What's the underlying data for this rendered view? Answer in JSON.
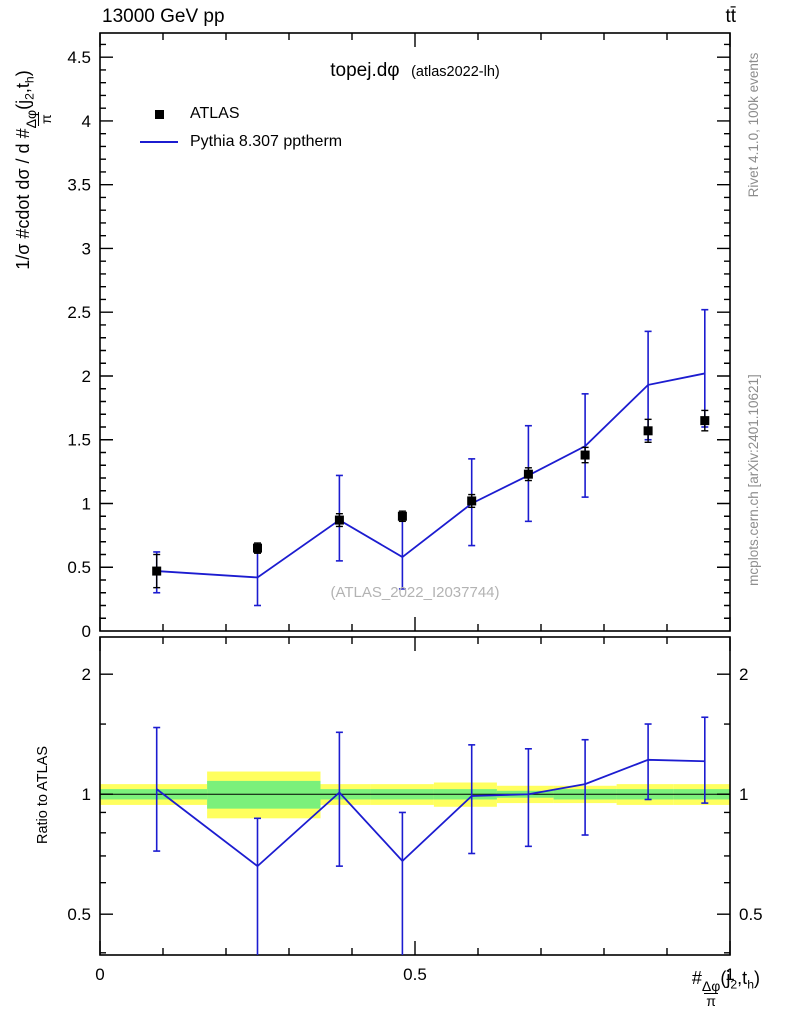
{
  "header": {
    "left_label": "13000 GeV pp",
    "right_label": "tt̄"
  },
  "plot": {
    "title": "topej.dφ",
    "subtitle": "(atlas2022-lh)",
    "watermark": "(ATLAS_2022_I2037744)"
  },
  "axis_labels": {
    "ylabel_pre": "1/σ #cdot dσ / d #",
    "frac_num": "Δφ",
    "frac_den": "π",
    "args_pre": "(j",
    "arg_sub1": "2",
    "args_mid": ",t",
    "arg_sub2": "h",
    "args_post": ")",
    "xlabel_pre": "#",
    "ratio_ylabel": "Ratio to ATLAS"
  },
  "sidebar": {
    "top": "Rivet 4.1.0,  100k events",
    "bottom": "mcplots.cern.ch [arXiv:2401.10621]"
  },
  "legend": {
    "items": [
      {
        "label": "ATLAS",
        "marker": "square",
        "color": "#000000"
      },
      {
        "label": "Pythia 8.307 pptherm",
        "marker": "line",
        "color": "#1c1cd0"
      }
    ]
  },
  "colors": {
    "curve": "#1c1cd0",
    "data": "#000000",
    "band_outer": "#ffff5e",
    "band_inner": "#7bf07b",
    "gray_text": "#8d8d8d"
  },
  "chart_data": {
    "type": "line",
    "title": "topej.dφ (atlas2022-lh)",
    "xlabel": "#Δφ/π(j2,th)",
    "ylabel": "1/σ #cdot dσ / d #Δφ/π(j2,th)",
    "legend_position": "top-left",
    "grid": false,
    "xlim": [
      0,
      1
    ],
    "main_ylim": [
      0,
      4.69
    ],
    "main_yticks": [
      0,
      0.5,
      1,
      1.5,
      2,
      2.5,
      3,
      3.5,
      4,
      4.5
    ],
    "xticks": [
      0,
      0.5,
      1
    ],
    "xtick_labels": [
      "0",
      "0.5",
      "1"
    ],
    "ratio_ylim": [
      0.395,
      2.48
    ],
    "ratio_yticks": [
      0.5,
      1,
      2
    ],
    "ratio_minor_yticks": [
      0.4,
      0.6,
      0.7,
      0.8,
      0.9,
      1.5
    ],
    "x": [
      0.09,
      0.25,
      0.38,
      0.48,
      0.59,
      0.68,
      0.77,
      0.87,
      0.96
    ],
    "series": [
      {
        "name": "ATLAS",
        "type": "points",
        "values": [
          0.47,
          0.65,
          0.87,
          0.9,
          1.02,
          1.23,
          1.38,
          1.57,
          1.65
        ],
        "err": [
          0.13,
          0.04,
          0.05,
          0.04,
          0.05,
          0.05,
          0.06,
          0.09,
          0.08
        ]
      },
      {
        "name": "Pythia 8.307 pptherm",
        "type": "line",
        "values": [
          0.47,
          0.42,
          0.87,
          0.58,
          1.0,
          1.22,
          1.45,
          1.93,
          2.02
        ],
        "err_lo": [
          0.17,
          0.22,
          0.32,
          0.25,
          0.33,
          0.36,
          0.4,
          0.43,
          0.42
        ],
        "err_hi": [
          0.15,
          0.2,
          0.35,
          0.34,
          0.35,
          0.39,
          0.41,
          0.42,
          0.5
        ]
      }
    ],
    "ratio": {
      "name": "Pythia / ATLAS",
      "values": [
        1.03,
        0.66,
        1.01,
        0.68,
        0.99,
        1.0,
        1.06,
        1.22,
        1.21
      ],
      "err_lo": [
        0.31,
        0.33,
        0.35,
        0.33,
        0.28,
        0.26,
        0.27,
        0.25,
        0.26
      ],
      "err_hi": [
        0.44,
        0.21,
        0.42,
        0.22,
        0.34,
        0.3,
        0.31,
        0.28,
        0.35
      ],
      "band_edges": [
        0.0,
        0.17,
        0.35,
        0.43,
        0.53,
        0.63,
        0.72,
        0.82,
        0.91,
        1.0
      ],
      "outer_lo": [
        0.94,
        0.87,
        0.94,
        0.94,
        0.93,
        0.95,
        0.95,
        0.94,
        0.94
      ],
      "outer_hi": [
        1.06,
        1.14,
        1.06,
        1.06,
        1.07,
        1.05,
        1.05,
        1.06,
        1.06
      ],
      "inner_lo": [
        0.97,
        0.92,
        0.97,
        0.97,
        0.97,
        0.98,
        0.97,
        0.97,
        0.97
      ],
      "inner_hi": [
        1.03,
        1.08,
        1.03,
        1.03,
        1.03,
        1.02,
        1.03,
        1.03,
        1.03
      ]
    }
  }
}
